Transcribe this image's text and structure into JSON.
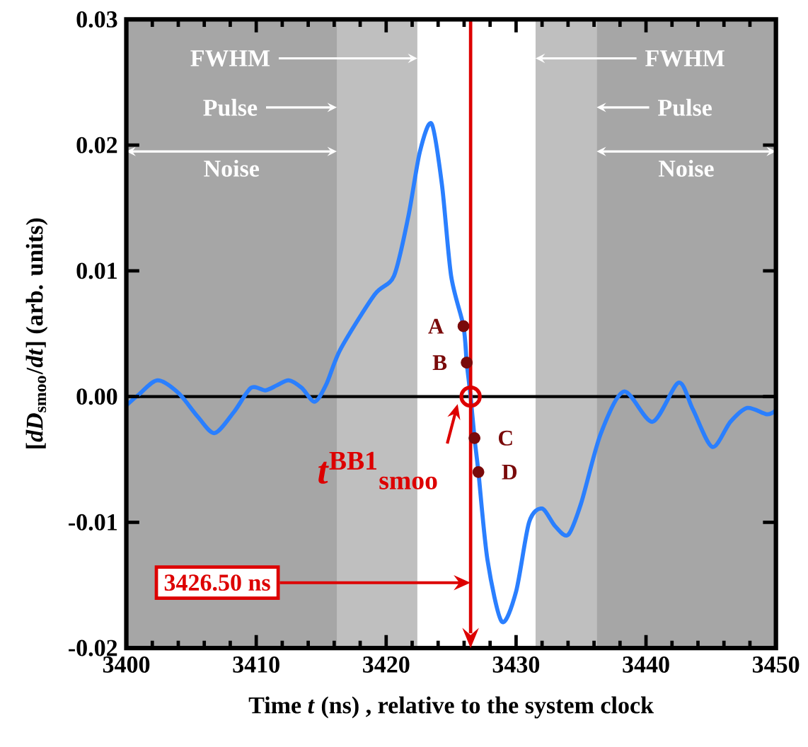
{
  "chart_data": {
    "type": "line",
    "xlabel": "Time *t* (ns) , relative to the system clock",
    "ylabel": "[*dD*$_{smoo}$/*dt*]     (arb. units)",
    "xlim": [
      3400,
      3450
    ],
    "ylim": [
      -0.02,
      0.03
    ],
    "xticks": [
      3400,
      3410,
      3420,
      3430,
      3440,
      3450
    ],
    "yticks": [
      {
        "value": -0.02,
        "label": "-0.02"
      },
      {
        "value": -0.01,
        "label": "-0.01"
      },
      {
        "value": 0,
        "label": "0.00"
      },
      {
        "value": 0.01,
        "label": "0.01"
      },
      {
        "value": 0.02,
        "label": "0.02"
      },
      {
        "value": 0.03,
        "label": "0.03"
      }
    ],
    "series": [
      {
        "color": "#2a7fff",
        "x": [
          3400,
          3401,
          3402.4,
          3404,
          3405.5,
          3406.8,
          3408.3,
          3409.6,
          3410.7,
          3411.6,
          3412.5,
          3413.5,
          3414.5,
          3415.4,
          3416.5,
          3419.1,
          3420.6,
          3421.7,
          3422.6,
          3423.5,
          3424.3,
          3425.0,
          3425.95,
          3426.2,
          3426.5,
          3426.8,
          3427.1,
          3427.8,
          3428.9,
          3430,
          3431,
          3432,
          3433,
          3434,
          3435,
          3436.5,
          3438.3,
          3440.5,
          3442.5,
          3443.6,
          3445.1,
          3446.5,
          3447.8,
          3449.3,
          3450
        ],
        "values": [
          -0.0007,
          0.0002,
          0.0013,
          0.0003,
          -0.0016,
          -0.0029,
          -0.0012,
          0.0007,
          0.0005,
          0.0009,
          0.0013,
          0.0007,
          -0.0004,
          0.001,
          0.0038,
          0.0081,
          0.0096,
          0.0143,
          0.0195,
          0.0217,
          0.0168,
          0.0096,
          0.0056,
          0.0027,
          0,
          -0.0033,
          -0.006,
          -0.013,
          -0.0179,
          -0.0155,
          -0.01,
          -0.0089,
          -0.0103,
          -0.011,
          -0.0085,
          -0.003,
          0.0004,
          -0.002,
          0.0011,
          -0.001,
          -0.004,
          -0.002,
          -0.0009,
          -0.0014,
          -0.0011
        ]
      },
      {
        "type": "scatter",
        "color": "#7a0a0a",
        "marker": "circle",
        "x": [
          3425.95,
          3426.2,
          3426.8,
          3427.1
        ],
        "values": [
          0.0056,
          0.0027,
          -0.0033,
          -0.006
        ]
      },
      {
        "type": "scatter",
        "color": "#dd0000",
        "marker": "circle",
        "x": [
          3426.5
        ],
        "values": [
          0
        ]
      }
    ],
    "annotations": [
      {
        "text": "A",
        "x": 3425.95,
        "y": 0.0056
      },
      {
        "text": "B",
        "x": 3426.2,
        "y": 0.0027
      },
      {
        "text": "C",
        "x": 3426.8,
        "y": -0.0033
      },
      {
        "text": "D",
        "x": 3427.1,
        "y": -0.006
      },
      {
        "text": "*t*$^{BB1}$$_{smoo}$",
        "x": 3426.5,
        "y": 0
      }
    ],
    "ref_lines": [
      {
        "axis": "y",
        "value": 0,
        "color": "#000000"
      },
      {
        "axis": "x",
        "value": 3426.5,
        "label": "3426.50 ns",
        "color": "#dd0000"
      }
    ],
    "bands": [
      {
        "axis": "x",
        "from": 3416.2,
        "to": 3436.2,
        "label": "Pulse",
        "color": "#bfbfbf"
      },
      {
        "axis": "x",
        "from": 3422.4,
        "to": 3431.5,
        "label": "FWHM",
        "color": "#ffffff"
      },
      {
        "axis": "x",
        "from": 3400,
        "to": 3416.2,
        "label": "Noise",
        "color": "#a6a6a6"
      },
      {
        "axis": "x",
        "from": 3436.2,
        "to": 3450,
        "label": "Noise",
        "color": "#a6a6a6"
      }
    ]
  }
}
